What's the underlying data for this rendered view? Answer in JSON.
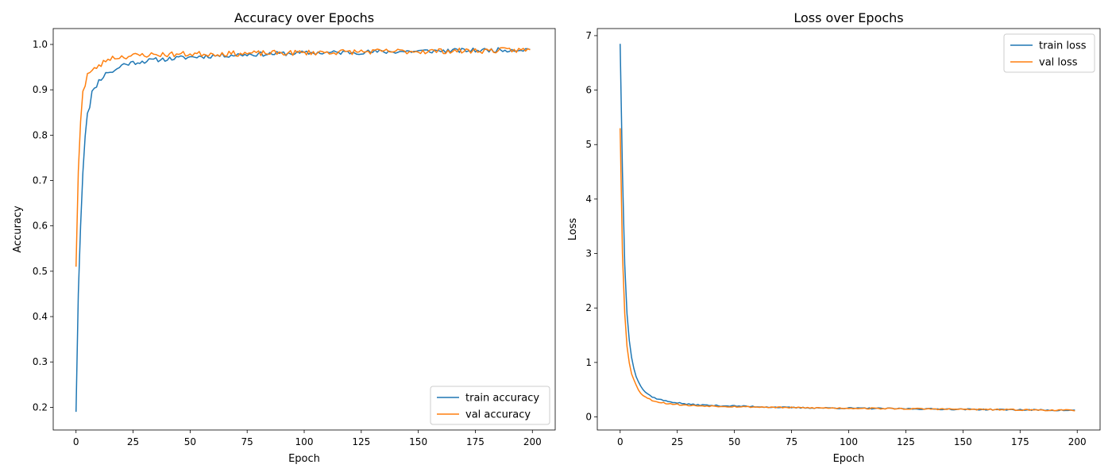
{
  "chart_data": [
    {
      "type": "line",
      "title": "Accuracy over Epochs",
      "xlabel": "Epoch",
      "ylabel": "Accuracy",
      "xlim": [
        -10,
        210
      ],
      "ylim": [
        0.15,
        1.035
      ],
      "xticks": [
        0,
        25,
        50,
        75,
        100,
        125,
        150,
        175,
        200
      ],
      "yticks": [
        0.2,
        0.3,
        0.4,
        0.5,
        0.6,
        0.7,
        0.8,
        0.9,
        1.0
      ],
      "ytick_labels": [
        "0.2",
        "0.3",
        "0.4",
        "0.5",
        "0.6",
        "0.7",
        "0.8",
        "0.9",
        "1.0"
      ],
      "legend_loc": "lower-right",
      "grid": false,
      "series": [
        {
          "name": "train accuracy",
          "color": "#1f77b4",
          "keypoints": [
            [
              0,
              0.19
            ],
            [
              1,
              0.45
            ],
            [
              2,
              0.6
            ],
            [
              3,
              0.72
            ],
            [
              4,
              0.8
            ],
            [
              5,
              0.85
            ],
            [
              6,
              0.865
            ],
            [
              7,
              0.895
            ],
            [
              8,
              0.9
            ],
            [
              9,
              0.91
            ],
            [
              10,
              0.92
            ],
            [
              12,
              0.93
            ],
            [
              14,
              0.94
            ],
            [
              16,
              0.94
            ],
            [
              18,
              0.945
            ],
            [
              20,
              0.955
            ],
            [
              25,
              0.96
            ],
            [
              30,
              0.963
            ],
            [
              35,
              0.966
            ],
            [
              40,
              0.968
            ],
            [
              50,
              0.972
            ],
            [
              60,
              0.975
            ],
            [
              75,
              0.978
            ],
            [
              100,
              0.981
            ],
            [
              125,
              0.983
            ],
            [
              150,
              0.985
            ],
            [
              175,
              0.987
            ],
            [
              199,
              0.989
            ]
          ],
          "noise": 0.005,
          "seed": 11
        },
        {
          "name": "val accuracy",
          "color": "#ff7f0e",
          "keypoints": [
            [
              0,
              0.51
            ],
            [
              1,
              0.72
            ],
            [
              2,
              0.83
            ],
            [
              3,
              0.9
            ],
            [
              4,
              0.91
            ],
            [
              5,
              0.935
            ],
            [
              7,
              0.94
            ],
            [
              9,
              0.95
            ],
            [
              11,
              0.955
            ],
            [
              13,
              0.965
            ],
            [
              15,
              0.97
            ],
            [
              20,
              0.973
            ],
            [
              25,
              0.975
            ],
            [
              30,
              0.977
            ],
            [
              40,
              0.978
            ],
            [
              50,
              0.979
            ],
            [
              75,
              0.98
            ],
            [
              100,
              0.982
            ],
            [
              125,
              0.984
            ],
            [
              150,
              0.985
            ],
            [
              175,
              0.986
            ],
            [
              199,
              0.988
            ]
          ],
          "noise": 0.006,
          "seed": 23
        }
      ]
    },
    {
      "type": "line",
      "title": "Loss over Epochs",
      "xlabel": "Epoch",
      "ylabel": "Loss",
      "xlim": [
        -10,
        210
      ],
      "ylim": [
        -0.24,
        7.13
      ],
      "xticks": [
        0,
        25,
        50,
        75,
        100,
        125,
        150,
        175,
        200
      ],
      "yticks": [
        0,
        1,
        2,
        3,
        4,
        5,
        6,
        7
      ],
      "ytick_labels": [
        "0",
        "1",
        "2",
        "3",
        "4",
        "5",
        "6",
        "7"
      ],
      "legend_loc": "top-right",
      "grid": false,
      "series": [
        {
          "name": "train loss",
          "color": "#1f77b4",
          "keypoints": [
            [
              0,
              6.85
            ],
            [
              1,
              4.5
            ],
            [
              2,
              2.8
            ],
            [
              3,
              1.9
            ],
            [
              4,
              1.4
            ],
            [
              5,
              1.1
            ],
            [
              6,
              0.9
            ],
            [
              7,
              0.75
            ],
            [
              8,
              0.65
            ],
            [
              9,
              0.57
            ],
            [
              10,
              0.5
            ],
            [
              12,
              0.42
            ],
            [
              15,
              0.35
            ],
            [
              20,
              0.29
            ],
            [
              25,
              0.26
            ],
            [
              30,
              0.23
            ],
            [
              40,
              0.21
            ],
            [
              50,
              0.2
            ],
            [
              75,
              0.17
            ],
            [
              100,
              0.16
            ],
            [
              125,
              0.15
            ],
            [
              150,
              0.14
            ],
            [
              175,
              0.13
            ],
            [
              199,
              0.12
            ]
          ],
          "noise": 0.012,
          "seed": 37
        },
        {
          "name": "val loss",
          "color": "#ff7f0e",
          "keypoints": [
            [
              0,
              5.3
            ],
            [
              1,
              3.0
            ],
            [
              2,
              1.9
            ],
            [
              3,
              1.3
            ],
            [
              4,
              1.0
            ],
            [
              5,
              0.8
            ],
            [
              6,
              0.68
            ],
            [
              7,
              0.58
            ],
            [
              8,
              0.5
            ],
            [
              9,
              0.44
            ],
            [
              10,
              0.4
            ],
            [
              12,
              0.34
            ],
            [
              15,
              0.29
            ],
            [
              20,
              0.25
            ],
            [
              25,
              0.23
            ],
            [
              30,
              0.21
            ],
            [
              40,
              0.2
            ],
            [
              50,
              0.19
            ],
            [
              75,
              0.17
            ],
            [
              100,
              0.16
            ],
            [
              125,
              0.15
            ],
            [
              150,
              0.14
            ],
            [
              175,
              0.13
            ],
            [
              199,
              0.12
            ]
          ],
          "noise": 0.012,
          "seed": 53
        }
      ]
    }
  ]
}
